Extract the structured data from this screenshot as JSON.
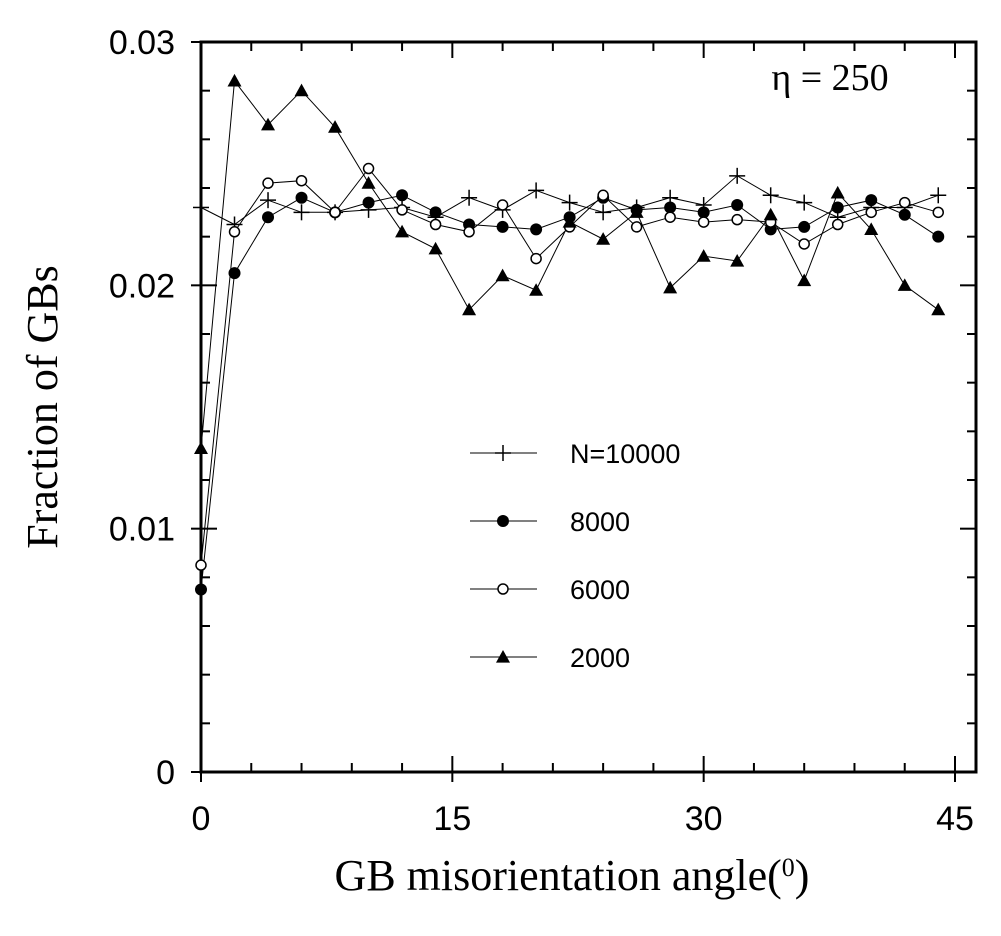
{
  "chart_data": {
    "type": "line",
    "annotation": "η = 250",
    "xlabel": "GB misorientation angle(",
    "xlabel_sup": "0",
    "xlabel_close": ")",
    "ylabel": "Fraction of GBs",
    "xlim": [
      0,
      46
    ],
    "ylim": [
      0,
      0.03
    ],
    "x_ticks": [
      0,
      15,
      30,
      45
    ],
    "y_ticks": [
      0,
      0.01,
      0.02,
      0.03
    ],
    "x_tick_labels": [
      "0",
      "15",
      "30",
      "45"
    ],
    "y_tick_labels": [
      "0",
      "0.01",
      "0.02",
      "0.03"
    ],
    "x_minor_step": 3,
    "y_minor_step": 0.002,
    "grid": false,
    "legend_position": "center-right",
    "x": [
      0,
      2,
      4,
      6,
      8,
      10,
      12,
      14,
      16,
      18,
      20,
      22,
      24,
      26,
      28,
      30,
      32,
      34,
      36,
      38,
      40,
      42,
      44
    ],
    "series": [
      {
        "name": "N=10000",
        "marker": "plus",
        "values": [
          0.0232,
          0.0225,
          0.0235,
          0.023,
          0.023,
          0.0231,
          0.0232,
          0.0228,
          0.0236,
          0.0231,
          0.0239,
          0.0234,
          0.023,
          0.0232,
          0.0236,
          0.0233,
          0.0245,
          0.0237,
          0.0234,
          0.0228,
          0.0232,
          0.0232,
          0.0237
        ]
      },
      {
        "name": "8000",
        "marker": "filled-circle",
        "values": [
          0.0075,
          0.0205,
          0.0228,
          0.0236,
          0.023,
          0.0234,
          0.0237,
          0.023,
          0.0225,
          0.0224,
          0.0223,
          0.0228,
          0.0236,
          0.0231,
          0.0232,
          0.023,
          0.0233,
          0.0223,
          0.0224,
          0.0232,
          0.0235,
          0.0229,
          0.022
        ]
      },
      {
        "name": "6000",
        "marker": "open-circle",
        "values": [
          0.0085,
          0.0222,
          0.0242,
          0.0243,
          0.023,
          0.0248,
          0.0231,
          0.0225,
          0.0222,
          0.0233,
          0.0211,
          0.0224,
          0.0237,
          0.0224,
          0.0228,
          0.0226,
          0.0227,
          0.0226,
          0.0217,
          0.0225,
          0.023,
          0.0234,
          0.023
        ]
      },
      {
        "name": "2000",
        "marker": "filled-triangle",
        "values": [
          0.0133,
          0.0284,
          0.0266,
          0.028,
          0.0265,
          0.0242,
          0.0222,
          0.0215,
          0.019,
          0.0204,
          0.0198,
          0.0226,
          0.0219,
          0.023,
          0.0199,
          0.0212,
          0.021,
          0.0229,
          0.0202,
          0.0238,
          0.0223,
          0.02,
          0.019
        ]
      }
    ]
  }
}
